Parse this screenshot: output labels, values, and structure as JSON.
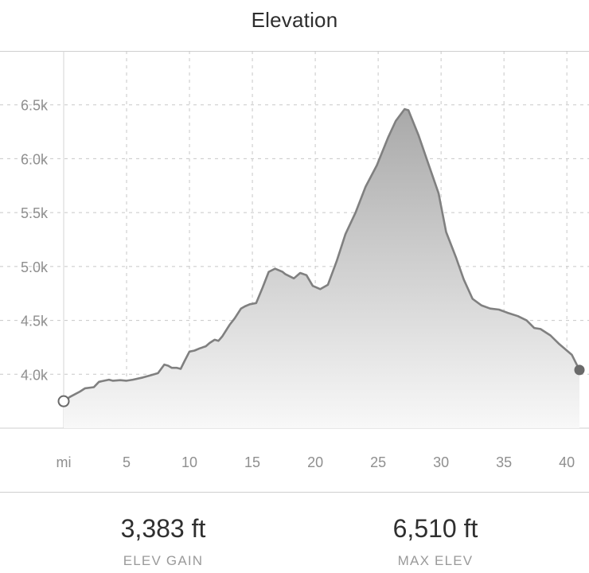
{
  "header": {
    "title": "Elevation"
  },
  "chart_data": {
    "type": "area",
    "x_unit_label": "mi",
    "xlim": [
      0,
      41
    ],
    "ylim": [
      3500,
      7000
    ],
    "x_ticks": [
      5,
      10,
      15,
      20,
      25,
      30,
      35,
      40
    ],
    "x_tick_labels": [
      "5",
      "10",
      "15",
      "20",
      "25",
      "30",
      "35",
      "40"
    ],
    "y_ticks": [
      4000,
      4500,
      5000,
      5500,
      6000,
      6500
    ],
    "y_tick_labels": [
      "4.0k",
      "4.5k",
      "5.0k",
      "5.5k",
      "6.0k",
      "6.5k"
    ],
    "grid": true,
    "colors": {
      "line": "#808080",
      "fill_top": "#a9a9a9",
      "fill_bottom": "#f8f8f8",
      "end_marker": "#6a6a6a"
    },
    "series": [
      {
        "x": [
          0,
          0.5,
          1.3,
          1.7,
          2.4,
          2.8,
          3.6,
          3.9,
          4.5,
          5.0,
          5.5,
          6.3,
          6.9,
          7.5,
          8.0,
          8.3,
          8.6,
          9.0,
          9.3,
          9.6,
          10.0,
          10.4,
          10.8,
          11.3,
          11.6,
          12.0,
          12.3,
          12.6,
          13.2,
          13.6,
          14.1,
          14.4,
          14.8,
          15.3,
          15.8,
          16.3,
          16.8,
          17.4,
          17.6,
          18.3,
          18.8,
          19.3,
          19.8,
          20.4,
          21.0,
          21.7,
          22.4,
          23.2,
          24.0,
          24.9,
          25.8,
          26.4,
          27.1,
          27.4,
          28.2,
          29.0,
          29.8,
          30.4,
          31.2,
          31.8,
          32.5,
          33.2,
          33.9,
          34.6,
          35.3,
          36.1,
          36.8,
          37.4,
          37.9,
          38.7,
          39.4,
          40.4,
          41.0
        ],
        "y": [
          3750,
          3790,
          3840,
          3870,
          3880,
          3930,
          3950,
          3940,
          3945,
          3940,
          3950,
          3970,
          3990,
          4010,
          4090,
          4080,
          4060,
          4060,
          4050,
          4120,
          4210,
          4220,
          4240,
          4260,
          4290,
          4320,
          4310,
          4350,
          4460,
          4520,
          4610,
          4630,
          4650,
          4660,
          4800,
          4950,
          4980,
          4950,
          4930,
          4890,
          4940,
          4920,
          4820,
          4790,
          4830,
          5050,
          5300,
          5500,
          5740,
          5940,
          6200,
          6350,
          6460,
          6450,
          6220,
          5950,
          5680,
          5320,
          5080,
          4880,
          4700,
          4640,
          4610,
          4600,
          4570,
          4540,
          4500,
          4430,
          4420,
          4360,
          4280,
          4180,
          4040
        ]
      }
    ]
  },
  "stats": [
    {
      "value": "3,383 ft",
      "label": "ELEV GAIN"
    },
    {
      "value": "6,510 ft",
      "label": "MAX ELEV"
    }
  ]
}
